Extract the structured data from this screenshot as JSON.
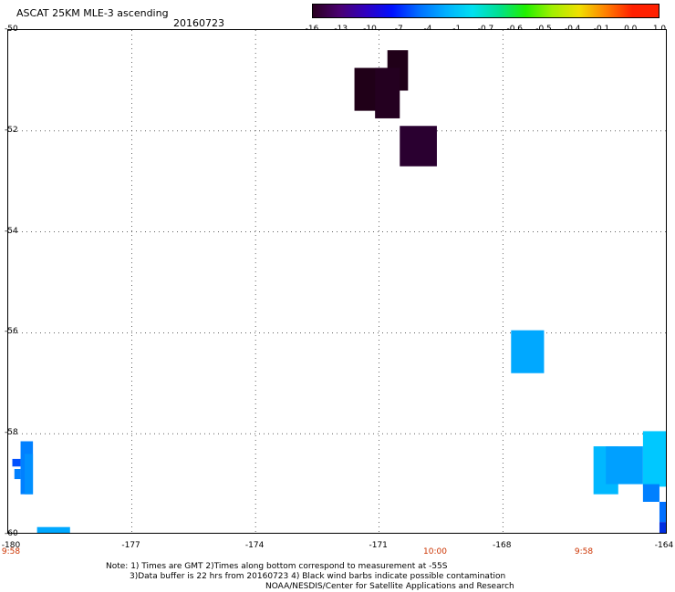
{
  "header": {
    "title": "ASCAT 25KM MLE-3 ascending",
    "date": "20160723"
  },
  "colorbar": {
    "labels": [
      "-16",
      "-13",
      "-10",
      "-7",
      "-4",
      "-1",
      "-0.7",
      "-0.6",
      "-0.5",
      "-0.4",
      "-0.1",
      "0.0",
      "1.0"
    ],
    "colors": [
      "#2a0020",
      "#4a0070",
      "#3000c0",
      "#0010ff",
      "#0070ff",
      "#00b0ff",
      "#00e0f0",
      "#00e090",
      "#20f000",
      "#a0f000",
      "#f0e000",
      "#ff8000",
      "#ff2000"
    ]
  },
  "map": {
    "lon_range": [
      -180,
      -164
    ],
    "lat_range": [
      -60,
      -50
    ],
    "x_ticks": [
      "-180",
      "-177",
      "-174",
      "-171",
      "-168",
      "-164"
    ],
    "y_ticks": [
      "-50",
      "-52",
      "-54",
      "-56",
      "-58",
      "-60"
    ],
    "time_labels": [
      "9:58",
      "10:00",
      "9:58"
    ],
    "cells": [
      {
        "lon0": -171.6,
        "lon1": -170.8,
        "lat0": -50.75,
        "lat1": -51.6,
        "color": "#200018"
      },
      {
        "lon0": -170.8,
        "lon1": -170.3,
        "lat0": -50.4,
        "lat1": -51.2,
        "color": "#200018"
      },
      {
        "lon0": -171.1,
        "lon1": -170.5,
        "lat0": -50.75,
        "lat1": -51.75,
        "color": "#240020"
      },
      {
        "lon0": -170.5,
        "lon1": -169.6,
        "lat0": -51.9,
        "lat1": -52.7,
        "color": "#2a0030"
      },
      {
        "lon0": -167.8,
        "lon1": -167.0,
        "lat0": -55.95,
        "lat1": -56.8,
        "color": "#00a8ff"
      },
      {
        "lon0": -165.8,
        "lon1": -165.2,
        "lat0": -58.25,
        "lat1": -59.2,
        "color": "#00b8ff"
      },
      {
        "lon0": -165.5,
        "lon1": -164.6,
        "lat0": -58.25,
        "lat1": -59.0,
        "color": "#00a0ff"
      },
      {
        "lon0": -164.6,
        "lon1": -164.0,
        "lat0": -57.95,
        "lat1": -59.05,
        "color": "#00c8ff"
      },
      {
        "lon0": -164.6,
        "lon1": -164.2,
        "lat0": -59.0,
        "lat1": -59.35,
        "color": "#0080ff"
      },
      {
        "lon0": -164.2,
        "lon1": -164.0,
        "lat0": -59.35,
        "lat1": -59.75,
        "color": "#0070ff"
      },
      {
        "lon0": -164.2,
        "lon1": -164.0,
        "lat0": -59.75,
        "lat1": -60.0,
        "color": "#0030e0"
      },
      {
        "lon0": -179.7,
        "lon1": -179.4,
        "lat0": -58.15,
        "lat1": -59.2,
        "color": "#0080ff"
      },
      {
        "lon0": -179.6,
        "lon1": -179.4,
        "lat0": -58.4,
        "lat1": -59.2,
        "color": "#0090ff"
      },
      {
        "lon0": -179.9,
        "lon1": -179.7,
        "lat0": -58.5,
        "lat1": -58.65,
        "color": "#0050ff"
      },
      {
        "lon0": -179.85,
        "lon1": -179.7,
        "lat0": -58.7,
        "lat1": -58.9,
        "color": "#0080ff"
      },
      {
        "lon0": -179.3,
        "lon1": -178.5,
        "lat0": -59.85,
        "lat1": -60.0,
        "color": "#00a8ff"
      }
    ]
  },
  "notes": {
    "line1": "Note: 1) Times are GMT 2)Times along bottom correspond to measurement at -55S",
    "line2": "3)Data buffer is 22 hrs from 20160723 4) Black wind barbs indicate possible contamination",
    "line3": "NOAA/NESDIS/Center for Satellite Applications and Research"
  }
}
